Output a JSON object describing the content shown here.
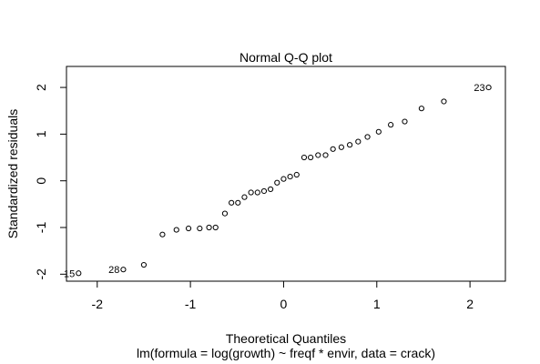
{
  "chart_data": {
    "type": "scatter",
    "title": "Normal Q-Q plot",
    "xlabel": "Theoretical Quantiles",
    "ylabel": "Standardized residuals",
    "subtitle": "lm(formula = log(growth) ~ freqf * envir, data = crack)",
    "xlim": [
      -2.33,
      2.38
    ],
    "ylim": [
      -2.15,
      2.45
    ],
    "x_ticks": [
      -2,
      -1,
      0,
      1,
      2
    ],
    "x_tick_labels": [
      "-2",
      "-1",
      "0",
      "1",
      "2"
    ],
    "y_ticks": [
      -2,
      -1,
      0,
      1,
      2
    ],
    "y_tick_labels": [
      "-2",
      "-1",
      "0",
      "1",
      "2"
    ],
    "grid": false,
    "marker": "open-circle",
    "points": [
      {
        "x": -2.2,
        "y": -1.98
      },
      {
        "x": -1.72,
        "y": -1.9
      },
      {
        "x": -1.5,
        "y": -1.8
      },
      {
        "x": -1.3,
        "y": -1.15
      },
      {
        "x": -1.15,
        "y": -1.05
      },
      {
        "x": -1.02,
        "y": -1.02
      },
      {
        "x": -0.9,
        "y": -1.02
      },
      {
        "x": -0.8,
        "y": -1.0
      },
      {
        "x": -0.73,
        "y": -1.0
      },
      {
        "x": -0.63,
        "y": -0.7
      },
      {
        "x": -0.56,
        "y": -0.47
      },
      {
        "x": -0.49,
        "y": -0.47
      },
      {
        "x": -0.42,
        "y": -0.35
      },
      {
        "x": -0.35,
        "y": -0.25
      },
      {
        "x": -0.28,
        "y": -0.25
      },
      {
        "x": -0.21,
        "y": -0.22
      },
      {
        "x": -0.14,
        "y": -0.18
      },
      {
        "x": -0.07,
        "y": -0.04
      },
      {
        "x": 0.0,
        "y": 0.04
      },
      {
        "x": 0.07,
        "y": 0.09
      },
      {
        "x": 0.14,
        "y": 0.13
      },
      {
        "x": 0.22,
        "y": 0.5
      },
      {
        "x": 0.29,
        "y": 0.5
      },
      {
        "x": 0.37,
        "y": 0.55
      },
      {
        "x": 0.45,
        "y": 0.55
      },
      {
        "x": 0.53,
        "y": 0.68
      },
      {
        "x": 0.62,
        "y": 0.72
      },
      {
        "x": 0.71,
        "y": 0.77
      },
      {
        "x": 0.8,
        "y": 0.84
      },
      {
        "x": 0.9,
        "y": 0.94
      },
      {
        "x": 1.02,
        "y": 1.05
      },
      {
        "x": 1.15,
        "y": 1.2
      },
      {
        "x": 1.3,
        "y": 1.27
      },
      {
        "x": 1.48,
        "y": 1.55
      },
      {
        "x": 1.72,
        "y": 1.7
      },
      {
        "x": 2.2,
        "y": 2.0
      }
    ],
    "annotations": [
      {
        "text": "15",
        "x": -2.2,
        "y": -1.98
      },
      {
        "text": "28",
        "x": -1.72,
        "y": -1.9
      },
      {
        "text": "23",
        "x": 2.2,
        "y": 2.0
      }
    ]
  }
}
